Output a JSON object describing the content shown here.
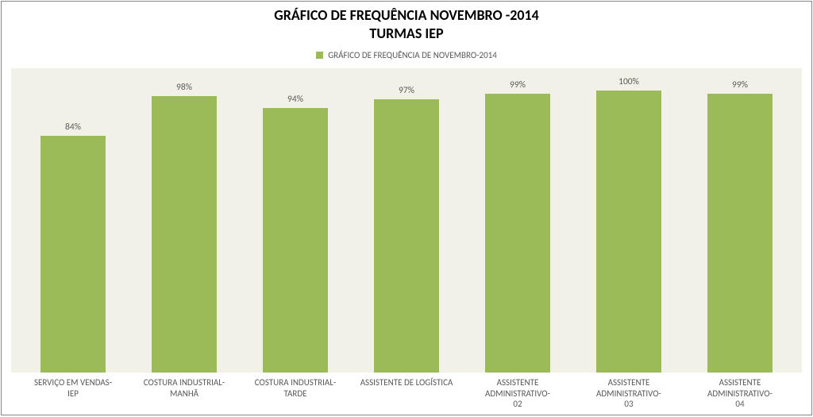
{
  "chart": {
    "type": "bar",
    "title_line1": "GRÁFICO DE FREQUÊNCIA NOVEMBRO -2014",
    "title_line2": "TURMAS IEP",
    "title_fontsize": 18,
    "title_fontweight": 700,
    "title_color": "#000000",
    "legend": {
      "label": "GRÁFICO DE FREQUÊNCIA DE NOVEMBRO-2014",
      "swatch_color": "#9bbb59",
      "text_color": "#595959",
      "fontsize": 11
    },
    "plot_background": "#f1f1e7",
    "frame_border_color": "#868686",
    "page_background": "#ffffff",
    "bar_color": "#9bbb59",
    "bar_width_pct": 58,
    "data_label_color": "#595959",
    "data_label_fontsize": 11.5,
    "axis_label_color": "#595959",
    "axis_label_fontsize": 11,
    "ylim": [
      0,
      108
    ],
    "categories": [
      "SERVIÇO EM VENDAS- IEP",
      "COSTURA INDUSTRIAL- MANHÃ",
      "COSTURA INDUSTRIAL- TARDE",
      "ASSISTENTE DE LOGÍSTICA",
      "ASSISTENTE ADMINISTRATIVO- 02",
      "ASSISTENTE ADMINISTRATIVO- 03",
      "ASSISTENTE ADMINISTRATIVO- 04"
    ],
    "values": [
      84,
      98,
      94,
      97,
      99,
      100,
      99
    ],
    "value_labels": [
      "84%",
      "98%",
      "94%",
      "97%",
      "99%",
      "100%",
      "99%"
    ]
  }
}
